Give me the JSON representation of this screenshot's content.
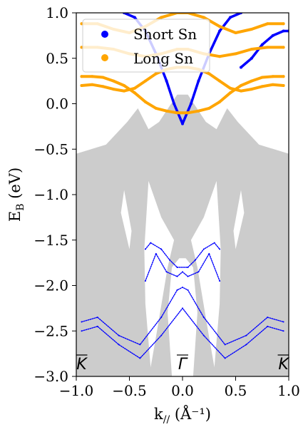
{
  "chart_data": {
    "type": "line",
    "title": "",
    "xlabel": "k",
    "xlabel_sub": "//",
    "xlabel_unit": " (Å⁻¹)",
    "ylabel": "E",
    "ylabel_sub": "B",
    "ylabel_unit": " (eV)",
    "xlim": [
      -1.0,
      1.0
    ],
    "ylim": [
      -3.0,
      1.0
    ],
    "xticks": [
      -1.0,
      -0.5,
      0.0,
      0.5,
      1.0
    ],
    "xtick_labels": [
      "−1.0",
      "−0.5",
      "0.0",
      "0.5",
      "1.0"
    ],
    "yticks": [
      1.0,
      0.5,
      0.0,
      -0.5,
      -1.0,
      -1.5,
      -2.0,
      -2.5,
      -3.0
    ],
    "ytick_labels": [
      "1.0",
      "0.5",
      "0.0",
      "−0.5",
      "−1.0",
      "−1.5",
      "−2.0",
      "−2.5",
      "−3.0"
    ],
    "legend": {
      "placement": "top-left"
    },
    "high_symmetry_points": [
      {
        "x": -0.95,
        "label": "K"
      },
      {
        "x": 0.0,
        "label": "Γ"
      },
      {
        "x": 0.95,
        "label": "K"
      }
    ],
    "colors": {
      "short": "#0000ff",
      "long": "#ffa500",
      "bulk": "#cccccc"
    },
    "series": [
      {
        "name": "Short Sn",
        "color": "#0000ff",
        "bands": [
          {
            "x": [
              -0.55,
              -0.45,
              -0.35,
              -0.25,
              -0.15,
              -0.08,
              0.0,
              0.08,
              0.15,
              0.25,
              0.35,
              0.45,
              0.55
            ],
            "y": [
              1.0,
              0.95,
              0.8,
              0.55,
              0.25,
              0.0,
              -0.22,
              0.0,
              0.25,
              0.55,
              0.8,
              0.95,
              1.0
            ]
          },
          {
            "x": [
              0.55,
              0.65,
              0.75,
              0.85,
              0.95,
              1.0
            ],
            "y": [
              0.4,
              0.5,
              0.65,
              0.75,
              0.8,
              0.8
            ]
          },
          {
            "x": [
              -0.35,
              -0.3,
              -0.2,
              -0.12,
              -0.05,
              0.05,
              0.12,
              0.2,
              0.3,
              0.35
            ],
            "y": [
              -1.6,
              -1.53,
              -1.6,
              -1.72,
              -1.8,
              -1.8,
              -1.72,
              -1.6,
              -1.53,
              -1.6
            ]
          },
          {
            "x": [
              -0.95,
              -0.8,
              -0.6,
              -0.4,
              -0.2,
              -0.05,
              0.0,
              0.05,
              0.2,
              0.4,
              0.6,
              0.8,
              0.95
            ],
            "y": [
              -2.4,
              -2.35,
              -2.55,
              -2.65,
              -2.35,
              -2.05,
              -2.02,
              -2.05,
              -2.35,
              -2.65,
              -2.55,
              -2.35,
              -2.4
            ]
          },
          {
            "x": [
              -0.95,
              -0.8,
              -0.6,
              -0.4,
              -0.2,
              0.0,
              0.2,
              0.4,
              0.6,
              0.8,
              0.95
            ],
            "y": [
              -2.5,
              -2.45,
              -2.65,
              -2.8,
              -2.55,
              -2.25,
              -2.55,
              -2.8,
              -2.65,
              -2.45,
              -2.5
            ]
          },
          {
            "x": [
              -0.35,
              -0.25,
              -0.15,
              -0.05,
              0.0,
              0.05,
              0.15,
              0.25,
              0.35
            ],
            "y": [
              -1.95,
              -1.65,
              -1.85,
              -1.9,
              -1.85,
              -1.9,
              -1.85,
              -1.65,
              -1.95
            ]
          }
        ]
      },
      {
        "name": "Long Sn",
        "color": "#ffa500",
        "bands": [
          {
            "x": [
              -0.95,
              -0.85,
              -0.75,
              -0.65,
              -0.55,
              -0.45,
              -0.35,
              -0.25,
              -0.15,
              -0.05,
              0.05,
              0.15,
              0.25,
              0.35,
              0.45,
              0.55,
              0.65,
              0.75,
              0.85,
              0.95
            ],
            "y": [
              0.2,
              0.21,
              0.19,
              0.16,
              0.14,
              0.17,
              0.25,
              0.33,
              0.38,
              0.4,
              0.4,
              0.38,
              0.33,
              0.25,
              0.17,
              0.14,
              0.16,
              0.19,
              0.21,
              0.2
            ]
          },
          {
            "x": [
              -0.95,
              -0.85,
              -0.75,
              -0.65,
              -0.55,
              -0.45,
              -0.35,
              -0.25,
              -0.15,
              -0.05,
              0.05,
              0.15,
              0.25,
              0.35,
              0.45,
              0.55,
              0.65,
              0.75,
              0.85,
              0.95
            ],
            "y": [
              0.3,
              0.3,
              0.29,
              0.25,
              0.2,
              0.12,
              0.02,
              -0.05,
              -0.08,
              -0.1,
              -0.1,
              -0.08,
              -0.05,
              0.02,
              0.12,
              0.2,
              0.25,
              0.29,
              0.3,
              0.3
            ]
          },
          {
            "x": [
              -0.95,
              -0.8,
              -0.65,
              -0.5,
              -0.35,
              -0.2,
              -0.05,
              0.05,
              0.2,
              0.35,
              0.5,
              0.65,
              0.8,
              0.95
            ],
            "y": [
              0.62,
              0.62,
              0.6,
              0.55,
              0.52,
              0.55,
              0.6,
              0.6,
              0.55,
              0.52,
              0.55,
              0.6,
              0.62,
              0.62
            ]
          },
          {
            "x": [
              -0.95,
              -0.8,
              -0.65,
              -0.5,
              -0.35,
              -0.2,
              -0.05,
              0.05,
              0.2,
              0.35,
              0.5,
              0.65,
              0.8,
              0.95
            ],
            "y": [
              0.88,
              0.88,
              0.82,
              0.78,
              0.85,
              0.95,
              1.0,
              1.0,
              0.95,
              0.85,
              0.78,
              0.82,
              0.88,
              0.88
            ]
          }
        ]
      }
    ]
  }
}
